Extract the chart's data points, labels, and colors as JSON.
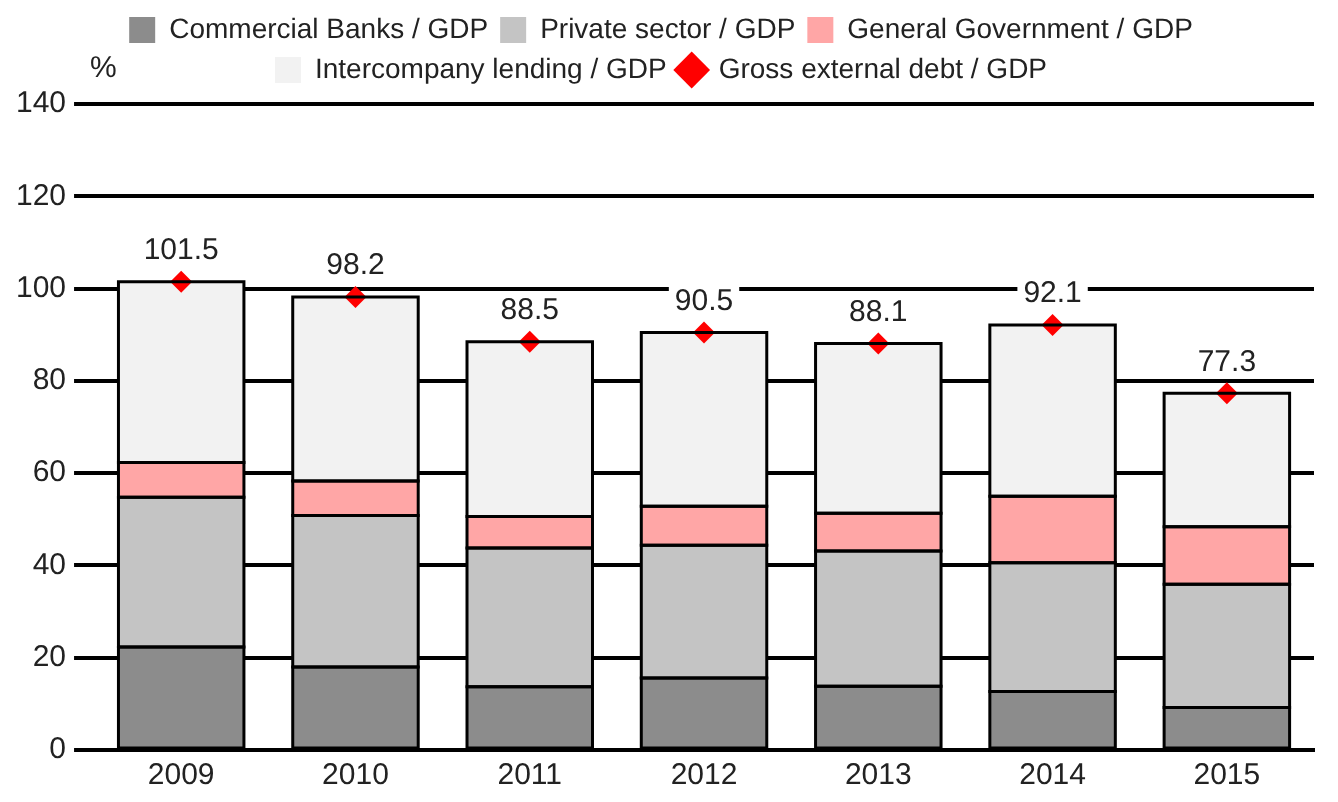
{
  "chart_data": {
    "type": "bar",
    "stacked": true,
    "ylabel": "%",
    "categories": [
      "2009",
      "2010",
      "2011",
      "2012",
      "2013",
      "2014",
      "2015"
    ],
    "series": [
      {
        "name": "Commercial Banks / GDP",
        "color": "#8c8c8c",
        "values": [
          22.3,
          18.0,
          13.7,
          15.6,
          13.8,
          12.7,
          9.2
        ]
      },
      {
        "name": "Private sector / GDP",
        "color": "#c4c4c4",
        "values": [
          32.5,
          32.8,
          30.1,
          28.8,
          29.3,
          27.9,
          26.7
        ]
      },
      {
        "name": "General Government / GDP",
        "color": "#ffa6a6",
        "values": [
          7.5,
          7.5,
          6.8,
          8.4,
          8.2,
          14.4,
          12.5
        ]
      },
      {
        "name": "Intercompany lending / GDP",
        "color": "#f2f2f2",
        "values": [
          39.2,
          39.9,
          37.9,
          37.7,
          36.8,
          37.1,
          28.9
        ]
      },
      {
        "name": "Gross external debt / GDP",
        "type": "scatter",
        "marker": "diamond",
        "color": "#ff0000",
        "values": [
          101.5,
          98.2,
          88.5,
          90.5,
          88.1,
          92.1,
          77.3
        ],
        "value_labels": [
          "101.5",
          "98.2",
          "88.5",
          "90.5",
          "88.1",
          "92.1",
          "77.3"
        ]
      }
    ],
    "ylim": [
      0,
      140
    ],
    "yticks": [
      0,
      20,
      40,
      60,
      80,
      100,
      120,
      140
    ],
    "grid": "y",
    "legend": "top"
  }
}
